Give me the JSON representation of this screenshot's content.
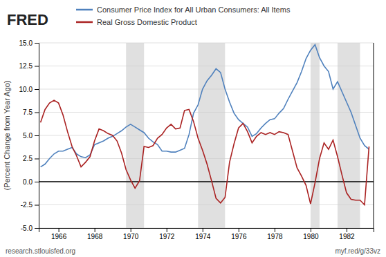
{
  "chart_data": {
    "type": "line",
    "y_label": "(Percent Change from Year Ago)",
    "annotations": [
      "FRED",
      "research.stlouisfed.org",
      "myf.red/g/33vz"
    ],
    "legend": "top-left",
    "grid": true,
    "xlim": [
      1964.9,
      1983.5
    ],
    "xticks": [
      1966,
      1968,
      1970,
      1972,
      1974,
      1976,
      1978,
      1980,
      1982
    ],
    "ylim": [
      -5.0,
      15.0
    ],
    "yticks": [
      {
        "value": -5.0,
        "label": "-5.0"
      },
      -2.5,
      {
        "value": 0.0,
        "label": "0.0"
      },
      2.5,
      {
        "value": 5.0,
        "label": "5.0"
      },
      7.5,
      {
        "value": 10.0,
        "label": "10.0"
      },
      12.5,
      {
        "value": 15.0,
        "label": "15.0"
      }
    ],
    "shaded_ranges": [
      [
        1969.75,
        1970.75
      ],
      [
        1973.75,
        1975.25
      ],
      [
        1980.0,
        1980.5
      ],
      [
        1981.5,
        1982.75
      ]
    ],
    "reference_lines": [
      {
        "value": 0,
        "color": "#000000"
      }
    ],
    "x": [
      1965.0,
      1965.25,
      1965.5,
      1965.75,
      1966.0,
      1966.25,
      1966.5,
      1966.75,
      1967.0,
      1967.25,
      1967.5,
      1967.75,
      1968.0,
      1968.25,
      1968.5,
      1968.75,
      1969.0,
      1969.25,
      1969.5,
      1969.75,
      1970.0,
      1970.25,
      1970.5,
      1970.75,
      1971.0,
      1971.25,
      1971.5,
      1971.75,
      1972.0,
      1972.25,
      1972.5,
      1972.75,
      1973.0,
      1973.25,
      1973.5,
      1973.75,
      1974.0,
      1974.25,
      1974.5,
      1974.75,
      1975.0,
      1975.25,
      1975.5,
      1975.75,
      1976.0,
      1976.25,
      1976.5,
      1976.75,
      1977.0,
      1977.25,
      1977.5,
      1977.75,
      1978.0,
      1978.25,
      1978.5,
      1978.75,
      1979.0,
      1979.25,
      1979.5,
      1979.75,
      1980.0,
      1980.25,
      1980.5,
      1980.75,
      1981.0,
      1981.25,
      1981.5,
      1981.75,
      1982.0,
      1982.25,
      1982.5,
      1982.75,
      1983.0,
      1983.25
    ],
    "series": [
      {
        "name": "Consumer Price Index for All Urban Consumers: All Items",
        "color": "#4f81bd",
        "values": [
          1.6,
          1.9,
          2.5,
          3.0,
          3.3,
          3.3,
          3.5,
          3.7,
          3.0,
          2.7,
          2.6,
          2.9,
          4.0,
          4.2,
          4.4,
          4.7,
          4.9,
          5.2,
          5.5,
          5.9,
          6.2,
          5.9,
          5.6,
          5.3,
          4.7,
          4.3,
          4.0,
          3.3,
          3.3,
          3.2,
          3.2,
          3.4,
          3.6,
          5.1,
          7.4,
          8.3,
          10.0,
          10.9,
          11.5,
          12.2,
          11.8,
          10.0,
          8.6,
          7.4,
          6.7,
          6.3,
          5.9,
          4.9,
          5.2,
          5.8,
          6.3,
          6.7,
          6.8,
          7.4,
          7.9,
          8.9,
          9.8,
          10.7,
          11.9,
          13.3,
          14.2,
          14.8,
          13.4,
          12.5,
          11.9,
          10.0,
          10.8,
          9.7,
          8.6,
          7.5,
          6.1,
          4.7,
          3.9,
          3.5
        ]
      },
      {
        "name": "Real Gross Domestic Product",
        "color": "#aa2222",
        "values": [
          6.4,
          7.8,
          8.5,
          8.8,
          8.5,
          7.2,
          5.4,
          3.8,
          2.8,
          1.6,
          2.1,
          2.7,
          4.4,
          5.7,
          5.5,
          5.2,
          5.0,
          4.4,
          3.1,
          1.3,
          0.2,
          -0.7,
          0.1,
          3.8,
          3.7,
          3.9,
          4.7,
          5.1,
          5.8,
          6.2,
          5.7,
          5.8,
          7.7,
          7.8,
          6.5,
          4.7,
          3.4,
          1.9,
          0.1,
          -1.8,
          -2.3,
          -1.7,
          2.1,
          4.1,
          5.8,
          6.3,
          5.4,
          4.2,
          4.9,
          5.3,
          5.1,
          5.3,
          5.1,
          5.4,
          5.3,
          5.1,
          3.3,
          1.5,
          0.6,
          -0.4,
          -2.4,
          -0.1,
          2.5,
          4.2,
          3.5,
          4.5,
          2.7,
          0.7,
          -1.2,
          -1.9,
          -2.0,
          -2.0,
          -2.5,
          3.8
        ]
      }
    ]
  }
}
